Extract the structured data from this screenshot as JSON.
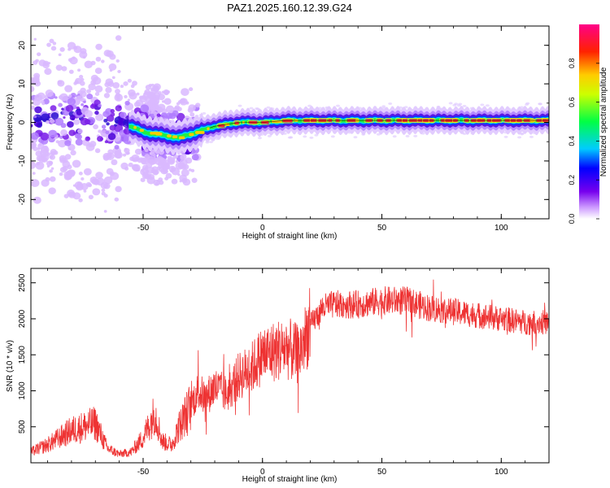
{
  "title": "PAZ1.2025.160.12.39.G24",
  "chart_data": [
    {
      "type": "heatmap",
      "xlabel": "Height of straight line (km)",
      "ylabel": "Frequency (Hz)",
      "xlim": [
        -97,
        120
      ],
      "ylim": [
        -25,
        25
      ],
      "x_ticks": [
        -50,
        0,
        50,
        100
      ],
      "y_ticks": [
        -20,
        -10,
        0,
        10,
        20
      ],
      "grid": false,
      "colorbar": {
        "label": "Normalized spectral amplitude",
        "range": [
          0,
          1
        ],
        "ticks": [
          "0.0",
          "0.2",
          "0.4",
          "0.6",
          "0.8"
        ],
        "colormap": "rainbow (white-violet-blue-cyan-green-yellow-red-magenta)"
      },
      "ridge": {
        "x": [
          -97,
          -80,
          -65,
          -55,
          -50,
          -40,
          -35,
          -30,
          -25,
          -20,
          -10,
          0,
          10,
          20,
          30,
          40,
          50,
          60,
          70,
          80,
          90,
          100,
          110,
          120
        ],
        "freq": [
          1,
          1,
          0,
          -1,
          -2.5,
          -3.5,
          -4,
          -3,
          -2,
          -1,
          0,
          0,
          0.5,
          0.5,
          0.5,
          0.5,
          0.5,
          0.5,
          0.5,
          0.5,
          0.5,
          0.5,
          0.5,
          0.5
        ]
      }
    },
    {
      "type": "line",
      "xlabel": "Height of straight line (km)",
      "ylabel": "SNR (10 * v/v)",
      "xlim": [
        -97,
        120
      ],
      "ylim": [
        0,
        2700
      ],
      "x_ticks": [
        -50,
        0,
        50,
        100
      ],
      "y_ticks": [
        500,
        1000,
        1500,
        2000,
        2500
      ],
      "grid": false,
      "color": "#ee3333",
      "series": [
        {
          "x": [
            -97,
            -90,
            -80,
            -75,
            -70,
            -65,
            -60,
            -55,
            -50,
            -45,
            -42,
            -38,
            -35,
            -30,
            -27,
            -24,
            -20,
            -15,
            -10,
            -5,
            0,
            5,
            10,
            15,
            20,
            25,
            30,
            40,
            50,
            60,
            70,
            80,
            90,
            100,
            110,
            120
          ],
          "values": [
            150,
            250,
            450,
            500,
            550,
            200,
            120,
            150,
            350,
            700,
            300,
            250,
            500,
            800,
            1000,
            900,
            1050,
            950,
            1200,
            1300,
            1500,
            1550,
            1600,
            1500,
            1900,
            2150,
            2200,
            2200,
            2250,
            2250,
            2150,
            2100,
            2050,
            2000,
            1950,
            1950
          ]
        }
      ]
    }
  ]
}
